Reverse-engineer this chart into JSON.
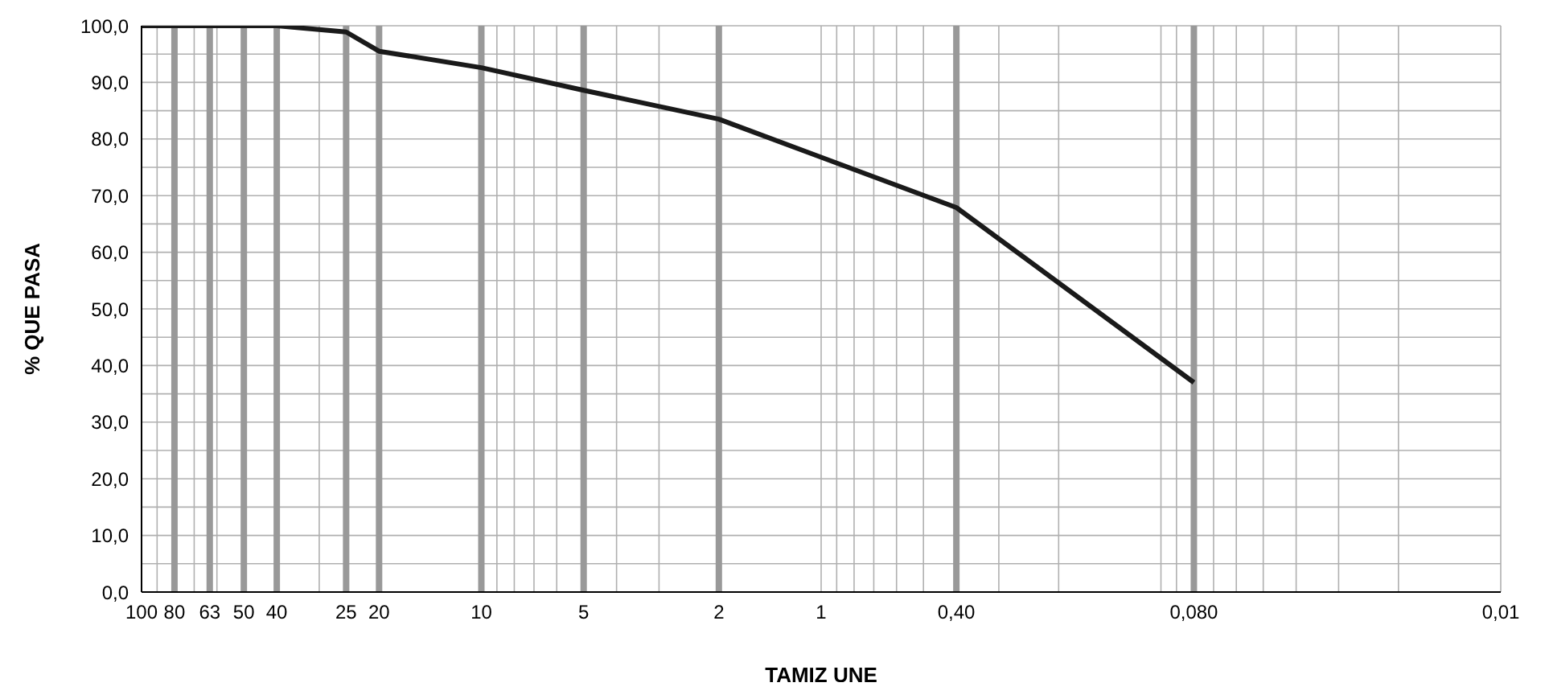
{
  "chart_data": {
    "type": "line",
    "xlabel": "TAMIZ UNE",
    "ylabel": "% QUE PASA",
    "log": "x",
    "grid": true,
    "legend": false,
    "marker": "none",
    "line_style": "solid",
    "x": [
      100,
      80,
      63,
      50,
      40,
      25,
      20,
      10,
      5,
      2,
      0.4,
      0.08
    ],
    "series": [
      {
        "color": "#1a1a1a",
        "values": [
          100,
          100,
          100,
          100,
          100,
          98.9,
          95.5,
          92.6,
          88.6,
          83.5,
          67.9,
          37.0
        ]
      }
    ],
    "xlim": [
      100,
      0.01
    ],
    "xticks": [
      100,
      80,
      63,
      50,
      40,
      25,
      20,
      10,
      5,
      2,
      1,
      {
        "value": 0.4,
        "label": "0,40"
      },
      {
        "value": 0.08,
        "label": "0,080"
      },
      {
        "value": 0.01,
        "label": "0,01"
      },
      {
        "value": 90,
        "label": null
      },
      {
        "value": 70,
        "label": null
      },
      {
        "value": 60,
        "label": null
      },
      {
        "value": 30,
        "label": null
      },
      {
        "value": 9,
        "label": null
      },
      {
        "value": 8,
        "label": null
      },
      {
        "value": 7,
        "label": null
      },
      {
        "value": 6,
        "label": null
      },
      {
        "value": 4,
        "label": null
      },
      {
        "value": 3,
        "label": null
      },
      {
        "value": 0.9,
        "label": null
      },
      {
        "value": 0.8,
        "label": null
      },
      {
        "value": 0.7,
        "label": null
      },
      {
        "value": 0.6,
        "label": null
      },
      {
        "value": 0.5,
        "label": null
      },
      {
        "value": 0.3,
        "label": null
      },
      {
        "value": 0.2,
        "label": null
      },
      {
        "value": 0.1,
        "label": null
      },
      {
        "value": 0.09,
        "label": null
      },
      {
        "value": 0.07,
        "label": null
      },
      {
        "value": 0.06,
        "label": null
      },
      {
        "value": 0.05,
        "label": null
      },
      {
        "value": 0.04,
        "label": null
      },
      {
        "value": 0.03,
        "label": null
      },
      {
        "value": 0.02,
        "label": null
      }
    ],
    "ylim": [
      0,
      100
    ],
    "yticks": [
      {
        "value": 0,
        "label": "0,0"
      },
      {
        "value": 10,
        "label": "10,0"
      },
      {
        "value": 20,
        "label": "20,0"
      },
      {
        "value": 30,
        "label": "30,0"
      },
      {
        "value": 40,
        "label": "40,0"
      },
      {
        "value": 50,
        "label": "50,0"
      },
      {
        "value": 60,
        "label": "60,0"
      },
      {
        "value": 70,
        "label": "70,0"
      },
      {
        "value": 80,
        "label": "80,0"
      },
      {
        "value": 90,
        "label": "90,0"
      },
      {
        "value": 100,
        "label": "100,0"
      },
      {
        "value": 5,
        "label": null
      },
      {
        "value": 15,
        "label": null
      },
      {
        "value": 25,
        "label": null
      },
      {
        "value": 35,
        "label": null
      },
      {
        "value": 45,
        "label": null
      },
      {
        "value": 55,
        "label": null
      },
      {
        "value": 65,
        "label": null
      },
      {
        "value": 75,
        "label": null
      },
      {
        "value": 85,
        "label": null
      },
      {
        "value": 95,
        "label": null
      }
    ]
  }
}
